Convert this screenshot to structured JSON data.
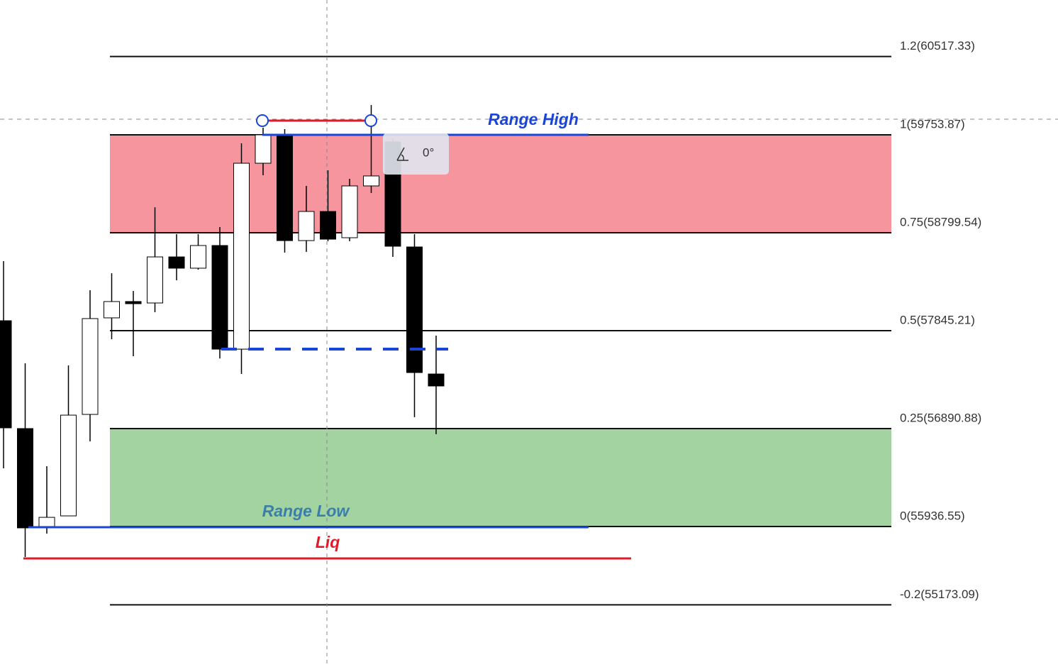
{
  "chart_data": {
    "type": "candlestick",
    "categories": [
      null,
      null,
      null,
      null,
      null,
      null,
      null,
      null,
      null,
      null,
      null,
      null,
      null,
      null,
      null,
      null,
      null,
      null,
      null,
      null,
      null
    ],
    "open": [
      57942,
      56891,
      55937,
      56040,
      57029,
      57970,
      58129,
      58115,
      58564,
      58454,
      58675,
      57665,
      59477,
      59754,
      58723,
      59007,
      58751,
      59256,
      59685,
      58661,
      57423
    ],
    "high": [
      58523,
      57527,
      56524,
      57506,
      58239,
      58405,
      58232,
      59048,
      58786,
      58786,
      58855,
      59671,
      59823,
      59809,
      59256,
      59408,
      59325,
      60044,
      59719,
      58786,
      57797
    ],
    "low": [
      56504,
      55639,
      55867,
      56040,
      56766,
      57762,
      57596,
      58025,
      58336,
      58440,
      57575,
      57423,
      59360,
      58606,
      58613,
      58717,
      58717,
      59187,
      58564,
      57002,
      56836
    ],
    "close": [
      56898,
      55923,
      56026,
      57022,
      57963,
      58129,
      58108,
      58564,
      58454,
      58675,
      57665,
      59477,
      59754,
      58723,
      59007,
      58737,
      59256,
      59353,
      58668,
      57437,
      57306
    ],
    "up_color": "#ffffff",
    "down_color": "#000000",
    "ylim": [
      54567.3,
      61067.8
    ],
    "levels": [
      {
        "value": 60517.33,
        "label": "1.2(60517.33)"
      },
      {
        "value": 59753.87,
        "label": "1(59753.87)",
        "fill": "#f7959f"
      },
      {
        "value": 58799.54,
        "label": "0.75(58799.54)"
      },
      {
        "value": 57845.21,
        "label": "0.5(57845.21)"
      },
      {
        "value": 56890.88,
        "label": "0.25(56890.88)",
        "fill": "#a3d3a1"
      },
      {
        "value": 55936.55,
        "label": "0(55936.55)"
      },
      {
        "value": 55173.09,
        "label": "-0.2(55173.09)"
      }
    ],
    "annotations": {
      "range_high": "Range High",
      "range_low": "Range Low",
      "liq": "Liq"
    },
    "tooltip": "0°"
  }
}
